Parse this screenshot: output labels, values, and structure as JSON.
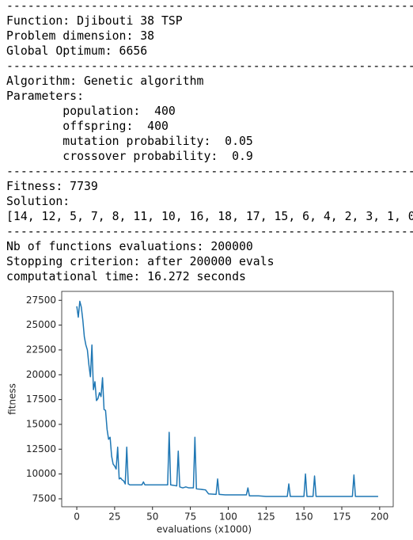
{
  "lines": [
    "----------------------------------------------------------",
    "Function: Djibouti 38 TSP",
    "Problem dimension: 38",
    "Global Optimum: 6656",
    "----------------------------------------------------------",
    "Algorithm: Genetic algorithm",
    "Parameters:",
    "\tpopulation:  400",
    "\toffspring:  400",
    "\tmutation probability:  0.05",
    "\tcrossover probability:  0.9",
    "----------------------------------------------------------",
    "Fitness: 7739",
    "Solution:",
    "[14, 12, 5, 7, 8, 11, 10, 16, 18, 17, 15, 6, 4, 2, 3, 1, 0",
    "----------------------------------------------------------",
    "Nb of functions evaluations: 200000",
    "Stopping criterion: after 200000 evals",
    "computational time: 16.272 seconds"
  ],
  "chart_data": {
    "type": "line",
    "x_label": "evaluations (x1000)",
    "y_label": "fitness",
    "x": [
      0,
      1,
      2,
      3,
      4,
      5,
      6,
      7,
      8,
      9,
      10,
      11,
      12,
      13,
      14,
      15,
      16,
      17,
      18,
      19,
      20,
      21,
      22,
      23,
      24,
      25,
      26,
      27,
      28,
      29,
      30,
      31,
      32,
      33,
      34,
      35,
      40,
      43,
      44,
      45,
      60,
      61,
      62,
      66,
      67,
      68,
      70,
      72,
      74,
      77,
      78,
      79,
      85,
      87,
      92,
      93,
      94,
      98,
      112,
      113,
      114,
      120,
      125,
      139,
      140,
      141,
      150,
      151,
      152,
      156,
      157,
      158,
      182,
      183,
      184,
      199
    ],
    "series": [
      {
        "color": "#1f77b4",
        "values": [
          26900,
          25800,
          27400,
          26800,
          25500,
          23800,
          23000,
          22500,
          21000,
          19800,
          23000,
          18500,
          19300,
          17400,
          17600,
          18200,
          17800,
          19700,
          16500,
          16400,
          14500,
          13500,
          13700,
          11800,
          11000,
          10800,
          10500,
          12700,
          9500,
          9600,
          9400,
          9300,
          9000,
          12700,
          9000,
          8900,
          8900,
          8900,
          9200,
          8900,
          8900,
          14200,
          8900,
          8800,
          12300,
          8700,
          8600,
          8700,
          8600,
          8600,
          13700,
          8500,
          8400,
          8000,
          7950,
          9500,
          7950,
          7900,
          7900,
          8600,
          7800,
          7800,
          7739,
          7739,
          9000,
          7739,
          7739,
          10000,
          7739,
          7739,
          9800,
          7739,
          7739,
          9900,
          7739,
          7739
        ]
      }
    ],
    "xlim": [
      -9.95,
      208.95
    ],
    "ylim": [
      6700,
      28400
    ],
    "xticks": [
      0,
      25,
      50,
      75,
      100,
      125,
      150,
      175,
      200
    ],
    "yticks": [
      7500,
      10000,
      12500,
      15000,
      17500,
      20000,
      22500,
      25000,
      27500
    ]
  }
}
